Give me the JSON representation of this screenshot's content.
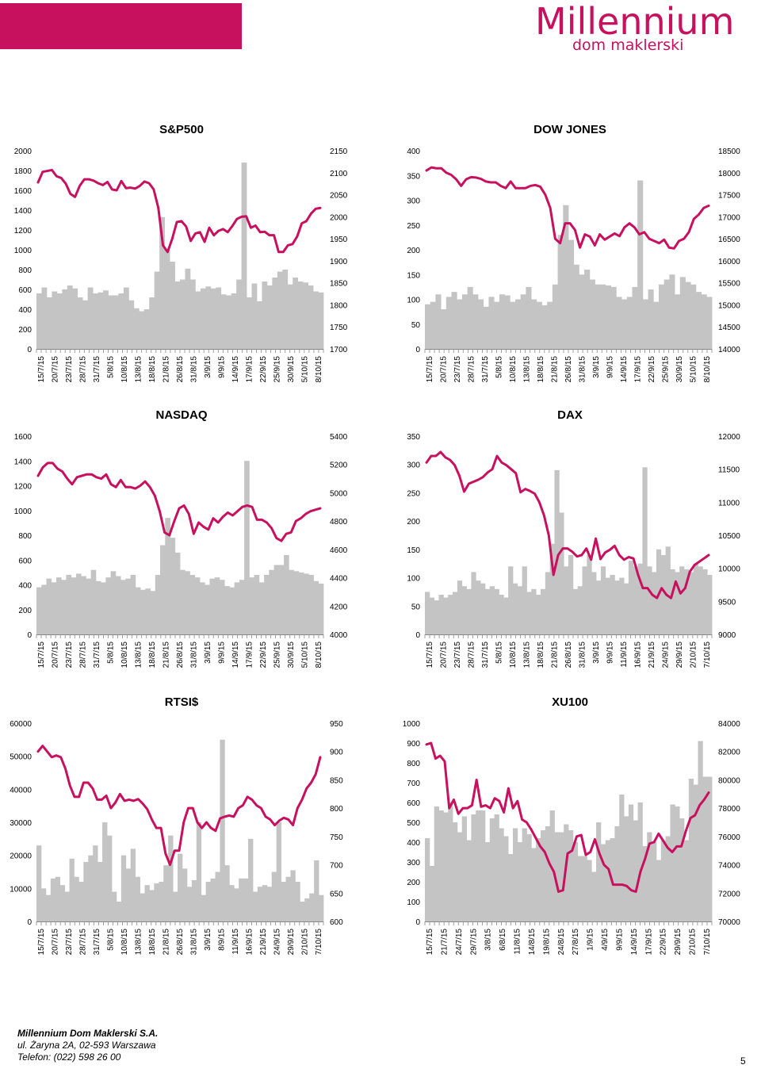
{
  "logo": {
    "name": "Millennium",
    "sub": "dom maklerski"
  },
  "footer": {
    "company": "Millennium Dom Maklerski S.A.",
    "address": "ul. Żaryna 2A, 02-593 Warszawa",
    "phone": "Telefon: (022) 598 26 00",
    "page": "5"
  },
  "colors": {
    "line": "#c7105e",
    "bar": "#c4c4c4",
    "accent": "#c7105e"
  },
  "chart_data": [
    {
      "type": "bar",
      "title": "S&P500",
      "left_ticks": [
        "0",
        "200",
        "400",
        "600",
        "800",
        "1000",
        "1200",
        "1400",
        "1600",
        "1800",
        "2000"
      ],
      "right_ticks": [
        "1700",
        "1750",
        "1800",
        "1850",
        "1900",
        "1950",
        "2000",
        "2050",
        "2100",
        "2150"
      ],
      "left_range": [
        0,
        2000
      ],
      "right_range": [
        1700,
        2150
      ],
      "x_labels": [
        "15/7/15",
        "20/7/15",
        "23/7/15",
        "28/7/15",
        "31/7/15",
        "5/8/15",
        "10/8/15",
        "13/8/15",
        "18/8/15",
        "21/8/15",
        "26/8/15",
        "31/8/15",
        "3/9/15",
        "9/9/15",
        "14/9/15",
        "17/9/15",
        "22/9/15",
        "25/9/15",
        "30/9/15",
        "5/10/15",
        "8/10/15"
      ],
      "bars": [
        560,
        620,
        520,
        580,
        560,
        600,
        640,
        610,
        520,
        490,
        620,
        560,
        570,
        590,
        540,
        540,
        560,
        620,
        490,
        410,
        380,
        400,
        520,
        780,
        1330,
        1000,
        880,
        680,
        700,
        810,
        700,
        580,
        610,
        630,
        610,
        620,
        550,
        540,
        560,
        700,
        1880,
        520,
        660,
        480,
        680,
        640,
        720,
        780,
        800,
        650,
        720,
        680,
        670,
        640,
        580,
        570
      ],
      "line": [
        2078,
        2102,
        2104,
        2106,
        2092,
        2088,
        2075,
        2052,
        2045,
        2070,
        2085,
        2085,
        2082,
        2076,
        2072,
        2079,
        2062,
        2060,
        2081,
        2065,
        2066,
        2064,
        2070,
        2080,
        2076,
        2062,
        2020,
        1935,
        1920,
        1950,
        1988,
        1990,
        1978,
        1945,
        1962,
        1965,
        1943,
        1975,
        1958,
        1968,
        1972,
        1965,
        1979,
        1995,
        2000,
        2001,
        1975,
        1980,
        1965,
        1966,
        1958,
        1958,
        1920,
        1920,
        1935,
        1938,
        1955,
        1985,
        1990,
        2007,
        2018,
        2020
      ]
    },
    {
      "type": "bar",
      "title": "DOW JONES",
      "left_ticks": [
        "0",
        "50",
        "100",
        "150",
        "200",
        "250",
        "300",
        "350",
        "400"
      ],
      "right_ticks": [
        "14000",
        "14500",
        "15000",
        "15500",
        "16000",
        "16500",
        "17000",
        "17500",
        "18000",
        "18500"
      ],
      "left_range": [
        0,
        400
      ],
      "right_range": [
        14000,
        18500
      ],
      "x_labels": [
        "15/7/15",
        "20/7/15",
        "23/7/15",
        "28/7/15",
        "31/7/15",
        "5/8/15",
        "10/8/15",
        "13/8/15",
        "18/8/15",
        "21/8/15",
        "26/8/15",
        "31/8/15",
        "3/9/15",
        "9/9/15",
        "14/9/15",
        "17/9/15",
        "22/9/15",
        "25/9/15",
        "30/9/15",
        "5/10/15",
        "8/10/15"
      ],
      "bars": [
        90,
        95,
        110,
        80,
        105,
        115,
        100,
        110,
        125,
        110,
        100,
        85,
        105,
        95,
        110,
        108,
        95,
        100,
        110,
        125,
        100,
        95,
        88,
        95,
        130,
        230,
        290,
        220,
        170,
        150,
        160,
        140,
        130,
        130,
        128,
        125,
        105,
        100,
        105,
        125,
        340,
        100,
        120,
        95,
        130,
        140,
        150,
        110,
        145,
        135,
        130,
        115,
        110,
        105
      ],
      "line": [
        18050,
        18120,
        18100,
        18100,
        18000,
        17950,
        17850,
        17700,
        17850,
        17900,
        17890,
        17860,
        17800,
        17780,
        17780,
        17700,
        17650,
        17800,
        17650,
        17650,
        17650,
        17700,
        17720,
        17680,
        17500,
        17200,
        16500,
        16400,
        16850,
        16850,
        16700,
        16300,
        16600,
        16550,
        16350,
        16600,
        16480,
        16550,
        16620,
        16560,
        16760,
        16850,
        16760,
        16600,
        16650,
        16500,
        16450,
        16400,
        16480,
        16300,
        16280,
        16450,
        16500,
        16650,
        16950,
        17050,
        17200,
        17250
      ]
    },
    {
      "type": "bar",
      "title": "NASDAQ",
      "left_ticks": [
        "0",
        "200",
        "400",
        "600",
        "800",
        "1000",
        "1200",
        "1400",
        "1600"
      ],
      "right_ticks": [
        "4000",
        "4200",
        "4400",
        "4600",
        "4800",
        "5000",
        "5200",
        "5400"
      ],
      "left_range": [
        0,
        1600
      ],
      "right_range": [
        4000,
        5400
      ],
      "x_labels": [
        "15/7/15",
        "20/7/15",
        "23/7/15",
        "28/7/15",
        "31/7/15",
        "5/8/15",
        "10/8/15",
        "13/8/15",
        "18/8/15",
        "21/8/15",
        "26/8/15",
        "31/8/15",
        "3/9/15",
        "9/9/15",
        "14/9/15",
        "17/9/15",
        "22/9/15",
        "25/9/15",
        "30/9/15",
        "5/10/15",
        "8/10/15"
      ],
      "bars": [
        380,
        400,
        450,
        420,
        460,
        440,
        480,
        460,
        490,
        470,
        450,
        520,
        430,
        420,
        460,
        510,
        470,
        440,
        450,
        480,
        380,
        360,
        370,
        350,
        480,
        720,
        940,
        780,
        660,
        520,
        510,
        480,
        460,
        420,
        400,
        450,
        460,
        440,
        390,
        380,
        420,
        440,
        1400,
        460,
        480,
        420,
        480,
        520,
        560,
        560,
        640,
        520,
        510,
        500,
        490,
        480,
        430,
        410
      ],
      "line": [
        5120,
        5180,
        5210,
        5210,
        5170,
        5150,
        5100,
        5060,
        5110,
        5120,
        5130,
        5130,
        5110,
        5100,
        5130,
        5060,
        5040,
        5090,
        5040,
        5040,
        5030,
        5050,
        5080,
        5040,
        4980,
        4870,
        4720,
        4700,
        4800,
        4890,
        4910,
        4850,
        4710,
        4790,
        4760,
        4740,
        4820,
        4790,
        4830,
        4860,
        4840,
        4870,
        4900,
        4910,
        4900,
        4810,
        4810,
        4790,
        4750,
        4680,
        4660,
        4710,
        4720,
        4800,
        4820,
        4850,
        4870,
        4880,
        4890
      ]
    },
    {
      "type": "bar",
      "title": "DAX",
      "left_ticks": [
        "0",
        "50",
        "100",
        "150",
        "200",
        "250",
        "300",
        "350"
      ],
      "right_ticks": [
        "9000",
        "9500",
        "10000",
        "10500",
        "11000",
        "11500",
        "12000"
      ],
      "left_range": [
        0,
        350
      ],
      "right_range": [
        9000,
        12000
      ],
      "x_labels": [
        "15/7/15",
        "20/7/15",
        "23/7/15",
        "28/7/15",
        "31/7/15",
        "5/8/15",
        "10/8/15",
        "13/8/15",
        "18/8/15",
        "21/8/15",
        "26/8/15",
        "31/8/15",
        "3/9/15",
        "9/9/15",
        "11/9/15",
        "16/9/15",
        "21/9/15",
        "24/9/15",
        "29/9/15",
        "2/10/15",
        "7/10/15"
      ],
      "bars": [
        75,
        65,
        60,
        70,
        65,
        70,
        75,
        95,
        85,
        80,
        110,
        95,
        90,
        80,
        85,
        80,
        70,
        65,
        120,
        90,
        85,
        120,
        75,
        80,
        70,
        80,
        110,
        160,
        290,
        215,
        120,
        140,
        80,
        85,
        120,
        140,
        110,
        95,
        120,
        100,
        105,
        95,
        100,
        90,
        130,
        120,
        125,
        295,
        120,
        110,
        150,
        140,
        155,
        115,
        110,
        120,
        115,
        110,
        125,
        120,
        115,
        105
      ],
      "line": [
        11600,
        11700,
        11700,
        11760,
        11680,
        11640,
        11560,
        11400,
        11160,
        11280,
        11310,
        11340,
        11380,
        11450,
        11500,
        11700,
        11600,
        11560,
        11500,
        11440,
        11150,
        11200,
        11170,
        11130,
        11000,
        10800,
        10500,
        9900,
        10200,
        10300,
        10300,
        10250,
        10180,
        10200,
        10300,
        10130,
        10450,
        10140,
        10240,
        10280,
        10340,
        10200,
        10130,
        10170,
        10150,
        9900,
        9700,
        9700,
        9600,
        9550,
        9700,
        9600,
        9550,
        9800,
        9620,
        9700,
        9950,
        10050,
        10100,
        10150,
        10200
      ]
    },
    {
      "type": "bar",
      "title": "RTSI$",
      "left_ticks": [
        "0",
        "10000",
        "20000",
        "30000",
        "40000",
        "50000",
        "60000"
      ],
      "right_ticks": [
        "600",
        "650",
        "700",
        "750",
        "800",
        "850",
        "900",
        "950"
      ],
      "left_range": [
        0,
        60000
      ],
      "right_range": [
        600,
        950
      ],
      "x_labels": [
        "15/7/15",
        "20/7/15",
        "23/7/15",
        "28/7/15",
        "31/7/15",
        "5/8/15",
        "10/8/15",
        "13/8/15",
        "18/8/15",
        "21/8/15",
        "26/8/15",
        "31/8/15",
        "3/9/15",
        "8/9/15",
        "11/9/15",
        "16/9/15",
        "21/9/15",
        "24/9/15",
        "29/9/15",
        "2/10/15",
        "7/10/15"
      ],
      "bars": [
        23000,
        10000,
        8000,
        13000,
        13500,
        11000,
        9000,
        19000,
        13500,
        12000,
        18000,
        20000,
        23000,
        18000,
        30000,
        26000,
        9000,
        6000,
        20000,
        16000,
        22000,
        13500,
        8500,
        11000,
        9500,
        11500,
        12000,
        17000,
        26000,
        9000,
        20500,
        16000,
        10500,
        12500,
        30000,
        8000,
        12000,
        13000,
        15000,
        55000,
        17000,
        11000,
        10000,
        13000,
        13000,
        25000,
        9000,
        10500,
        11000,
        10500,
        15000,
        30000,
        12000,
        13500,
        15500,
        12000,
        6000,
        7000,
        8500,
        18500,
        8000
      ],
      "line": [
        900,
        910,
        900,
        890,
        893,
        890,
        870,
        840,
        820,
        820,
        845,
        845,
        835,
        815,
        815,
        822,
        800,
        810,
        825,
        813,
        815,
        813,
        816,
        808,
        798,
        780,
        765,
        765,
        720,
        700,
        725,
        725,
        775,
        800,
        800,
        775,
        765,
        775,
        765,
        760,
        782,
        785,
        787,
        785,
        800,
        805,
        820,
        815,
        805,
        800,
        785,
        780,
        770,
        778,
        783,
        780,
        770,
        800,
        815,
        835,
        845,
        860,
        890
      ]
    },
    {
      "type": "bar",
      "title": "XU100",
      "left_ticks": [
        "0",
        "100",
        "200",
        "300",
        "400",
        "500",
        "600",
        "700",
        "800",
        "900",
        "1000"
      ],
      "right_ticks": [
        "70000",
        "72000",
        "74000",
        "76000",
        "78000",
        "80000",
        "82000",
        "84000"
      ],
      "left_range": [
        0,
        1000
      ],
      "right_range": [
        70000,
        84000
      ],
      "x_labels": [
        "15/7/15",
        "21/7/15",
        "24/7/15",
        "29/7/15",
        "3/8/15",
        "6/8/15",
        "11/8/15",
        "14/8/15",
        "19/8/15",
        "24/8/15",
        "27/8/15",
        "1/9/15",
        "4/9/15",
        "9/9/15",
        "14/9/15",
        "17/9/15",
        "22/9/15",
        "29/9/15",
        "2/10/15",
        "7/10/15"
      ],
      "bars": [
        420,
        280,
        580,
        560,
        550,
        600,
        500,
        450,
        530,
        410,
        540,
        560,
        560,
        400,
        520,
        540,
        470,
        430,
        340,
        470,
        400,
        470,
        440,
        370,
        420,
        460,
        480,
        560,
        450,
        450,
        490,
        460,
        400,
        330,
        330,
        310,
        250,
        500,
        390,
        410,
        420,
        480,
        640,
        530,
        590,
        510,
        600,
        380,
        450,
        400,
        310,
        410,
        430,
        590,
        580,
        520,
        410,
        720,
        690,
        910,
        730,
        730
      ],
      "line": [
        82500,
        82600,
        81500,
        81700,
        81300,
        78000,
        78600,
        77600,
        78000,
        78000,
        78200,
        80000,
        78100,
        78200,
        78000,
        78700,
        78500,
        77700,
        79400,
        78000,
        78500,
        77200,
        77000,
        76500,
        75900,
        75300,
        74900,
        74100,
        73500,
        72100,
        72200,
        74800,
        75000,
        76000,
        76100,
        74700,
        74900,
        75800,
        74800,
        74000,
        73700,
        72600,
        72600,
        72600,
        72500,
        72200,
        72100,
        73500,
        74400,
        75500,
        75600,
        76200,
        75700,
        75200,
        74900,
        75300,
        75300,
        76400,
        77300,
        77500,
        78200,
        78600,
        79100
      ]
    }
  ]
}
